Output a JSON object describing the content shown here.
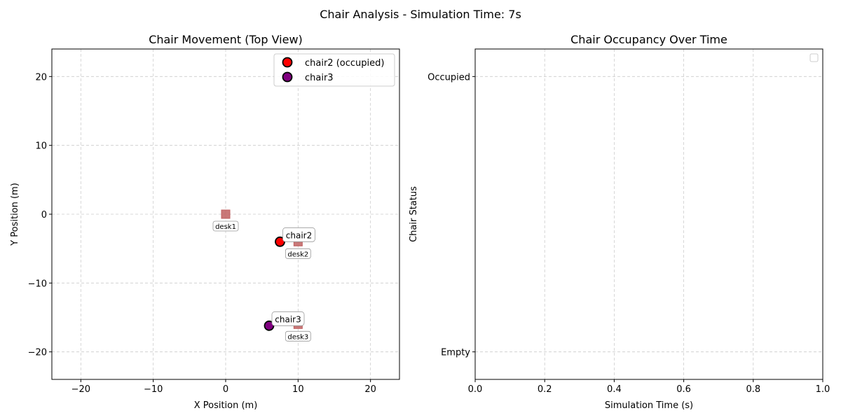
{
  "figure": {
    "suptitle": "Chair Analysis - Simulation Time: 7s"
  },
  "chart_data": [
    {
      "type": "scatter",
      "title": "Chair Movement (Top View)",
      "xlabel": "X Position (m)",
      "ylabel": "Y Position (m)",
      "xlim": [
        -24,
        24
      ],
      "ylim": [
        -24,
        24
      ],
      "xticks": [
        -20,
        -10,
        0,
        10,
        20
      ],
      "yticks": [
        -20,
        -10,
        0,
        10,
        20
      ],
      "xticklabels": [
        "−20",
        "−10",
        "0",
        "10",
        "20"
      ],
      "yticklabels": [
        "−20",
        "−10",
        "0",
        "10",
        "20"
      ],
      "grid": true,
      "legend_position": "upper-right",
      "desks": [
        {
          "label": "desk1",
          "x": 0,
          "y": 0
        },
        {
          "label": "desk2",
          "x": 10,
          "y": -4
        },
        {
          "label": "desk3",
          "x": 10,
          "y": -16
        }
      ],
      "series": [
        {
          "name": "chair2 (occupied)",
          "label": "chair2",
          "x": 7.5,
          "y": -4,
          "color": "#ff0000"
        },
        {
          "name": "chair3",
          "label": "chair3",
          "x": 6,
          "y": -16.2,
          "color": "#800080"
        }
      ],
      "desk_color": "#c06060"
    },
    {
      "type": "line",
      "title": "Chair Occupancy Over Time",
      "xlabel": "Simulation Time (s)",
      "ylabel": "Chair Status",
      "xlim": [
        0,
        1
      ],
      "ylim": [
        -0.1,
        1.1
      ],
      "xticks": [
        0,
        0.2,
        0.4,
        0.6,
        0.8,
        1.0
      ],
      "xticklabels": [
        "0.0",
        "0.2",
        "0.4",
        "0.6",
        "0.8",
        "1.0"
      ],
      "yticks": [
        0,
        1
      ],
      "yticklabels": [
        "Empty",
        "Occupied"
      ],
      "grid": true,
      "legend_position": "upper-right",
      "series": []
    }
  ]
}
